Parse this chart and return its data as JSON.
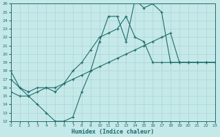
{
  "xlabel": "Humidex (Indice chaleur)",
  "xlim": [
    0,
    23
  ],
  "ylim": [
    12,
    26
  ],
  "yticks": [
    12,
    13,
    14,
    15,
    16,
    17,
    18,
    19,
    20,
    21,
    22,
    23,
    24,
    25,
    26
  ],
  "xticks": [
    0,
    1,
    2,
    3,
    4,
    5,
    6,
    7,
    8,
    9,
    10,
    11,
    12,
    13,
    14,
    15,
    16,
    17,
    18,
    19,
    20,
    21,
    22,
    23
  ],
  "bg_color": "#c5e8e8",
  "line_color": "#1e6b6b",
  "grid_color": "#b0d8d8",
  "line1_x": [
    0,
    1,
    2,
    3,
    4,
    5,
    6,
    7,
    8,
    9,
    10,
    11,
    12,
    13,
    14,
    15,
    16,
    17,
    18,
    19,
    20,
    21,
    22,
    23
  ],
  "line1_y": [
    18.0,
    16.0,
    15.0,
    14.0,
    13.0,
    12.0,
    12.0,
    12.5,
    15.5,
    18.0,
    21.5,
    24.5,
    24.5,
    21.5,
    26.5,
    25.5,
    26.0,
    25.0,
    19.0,
    19.0,
    19.0,
    19.0,
    19.0,
    19.0
  ],
  "line2_x": [
    0,
    1,
    2,
    3,
    4,
    5,
    6,
    7,
    8,
    9,
    10,
    11,
    12,
    13,
    14,
    15,
    16,
    17,
    18,
    19,
    20,
    21,
    22,
    23
  ],
  "line2_y": [
    17.0,
    16.0,
    15.5,
    16.0,
    16.0,
    15.5,
    16.5,
    18.0,
    19.0,
    20.5,
    22.0,
    22.5,
    23.0,
    24.5,
    22.0,
    21.5,
    19.0,
    19.0,
    19.0,
    19.0,
    19.0,
    19.0,
    19.0,
    19.0
  ],
  "line3_x": [
    0,
    1,
    2,
    3,
    4,
    5,
    6,
    7,
    8,
    9,
    10,
    11,
    12,
    13,
    14,
    15,
    16,
    17,
    18,
    19,
    20,
    21,
    22,
    23
  ],
  "line3_y": [
    15.5,
    15.0,
    15.0,
    15.5,
    16.0,
    16.0,
    16.5,
    17.0,
    17.5,
    18.0,
    18.5,
    19.0,
    19.5,
    20.0,
    20.5,
    21.0,
    21.5,
    22.0,
    22.5,
    19.0,
    19.0,
    19.0,
    19.0,
    19.0
  ]
}
